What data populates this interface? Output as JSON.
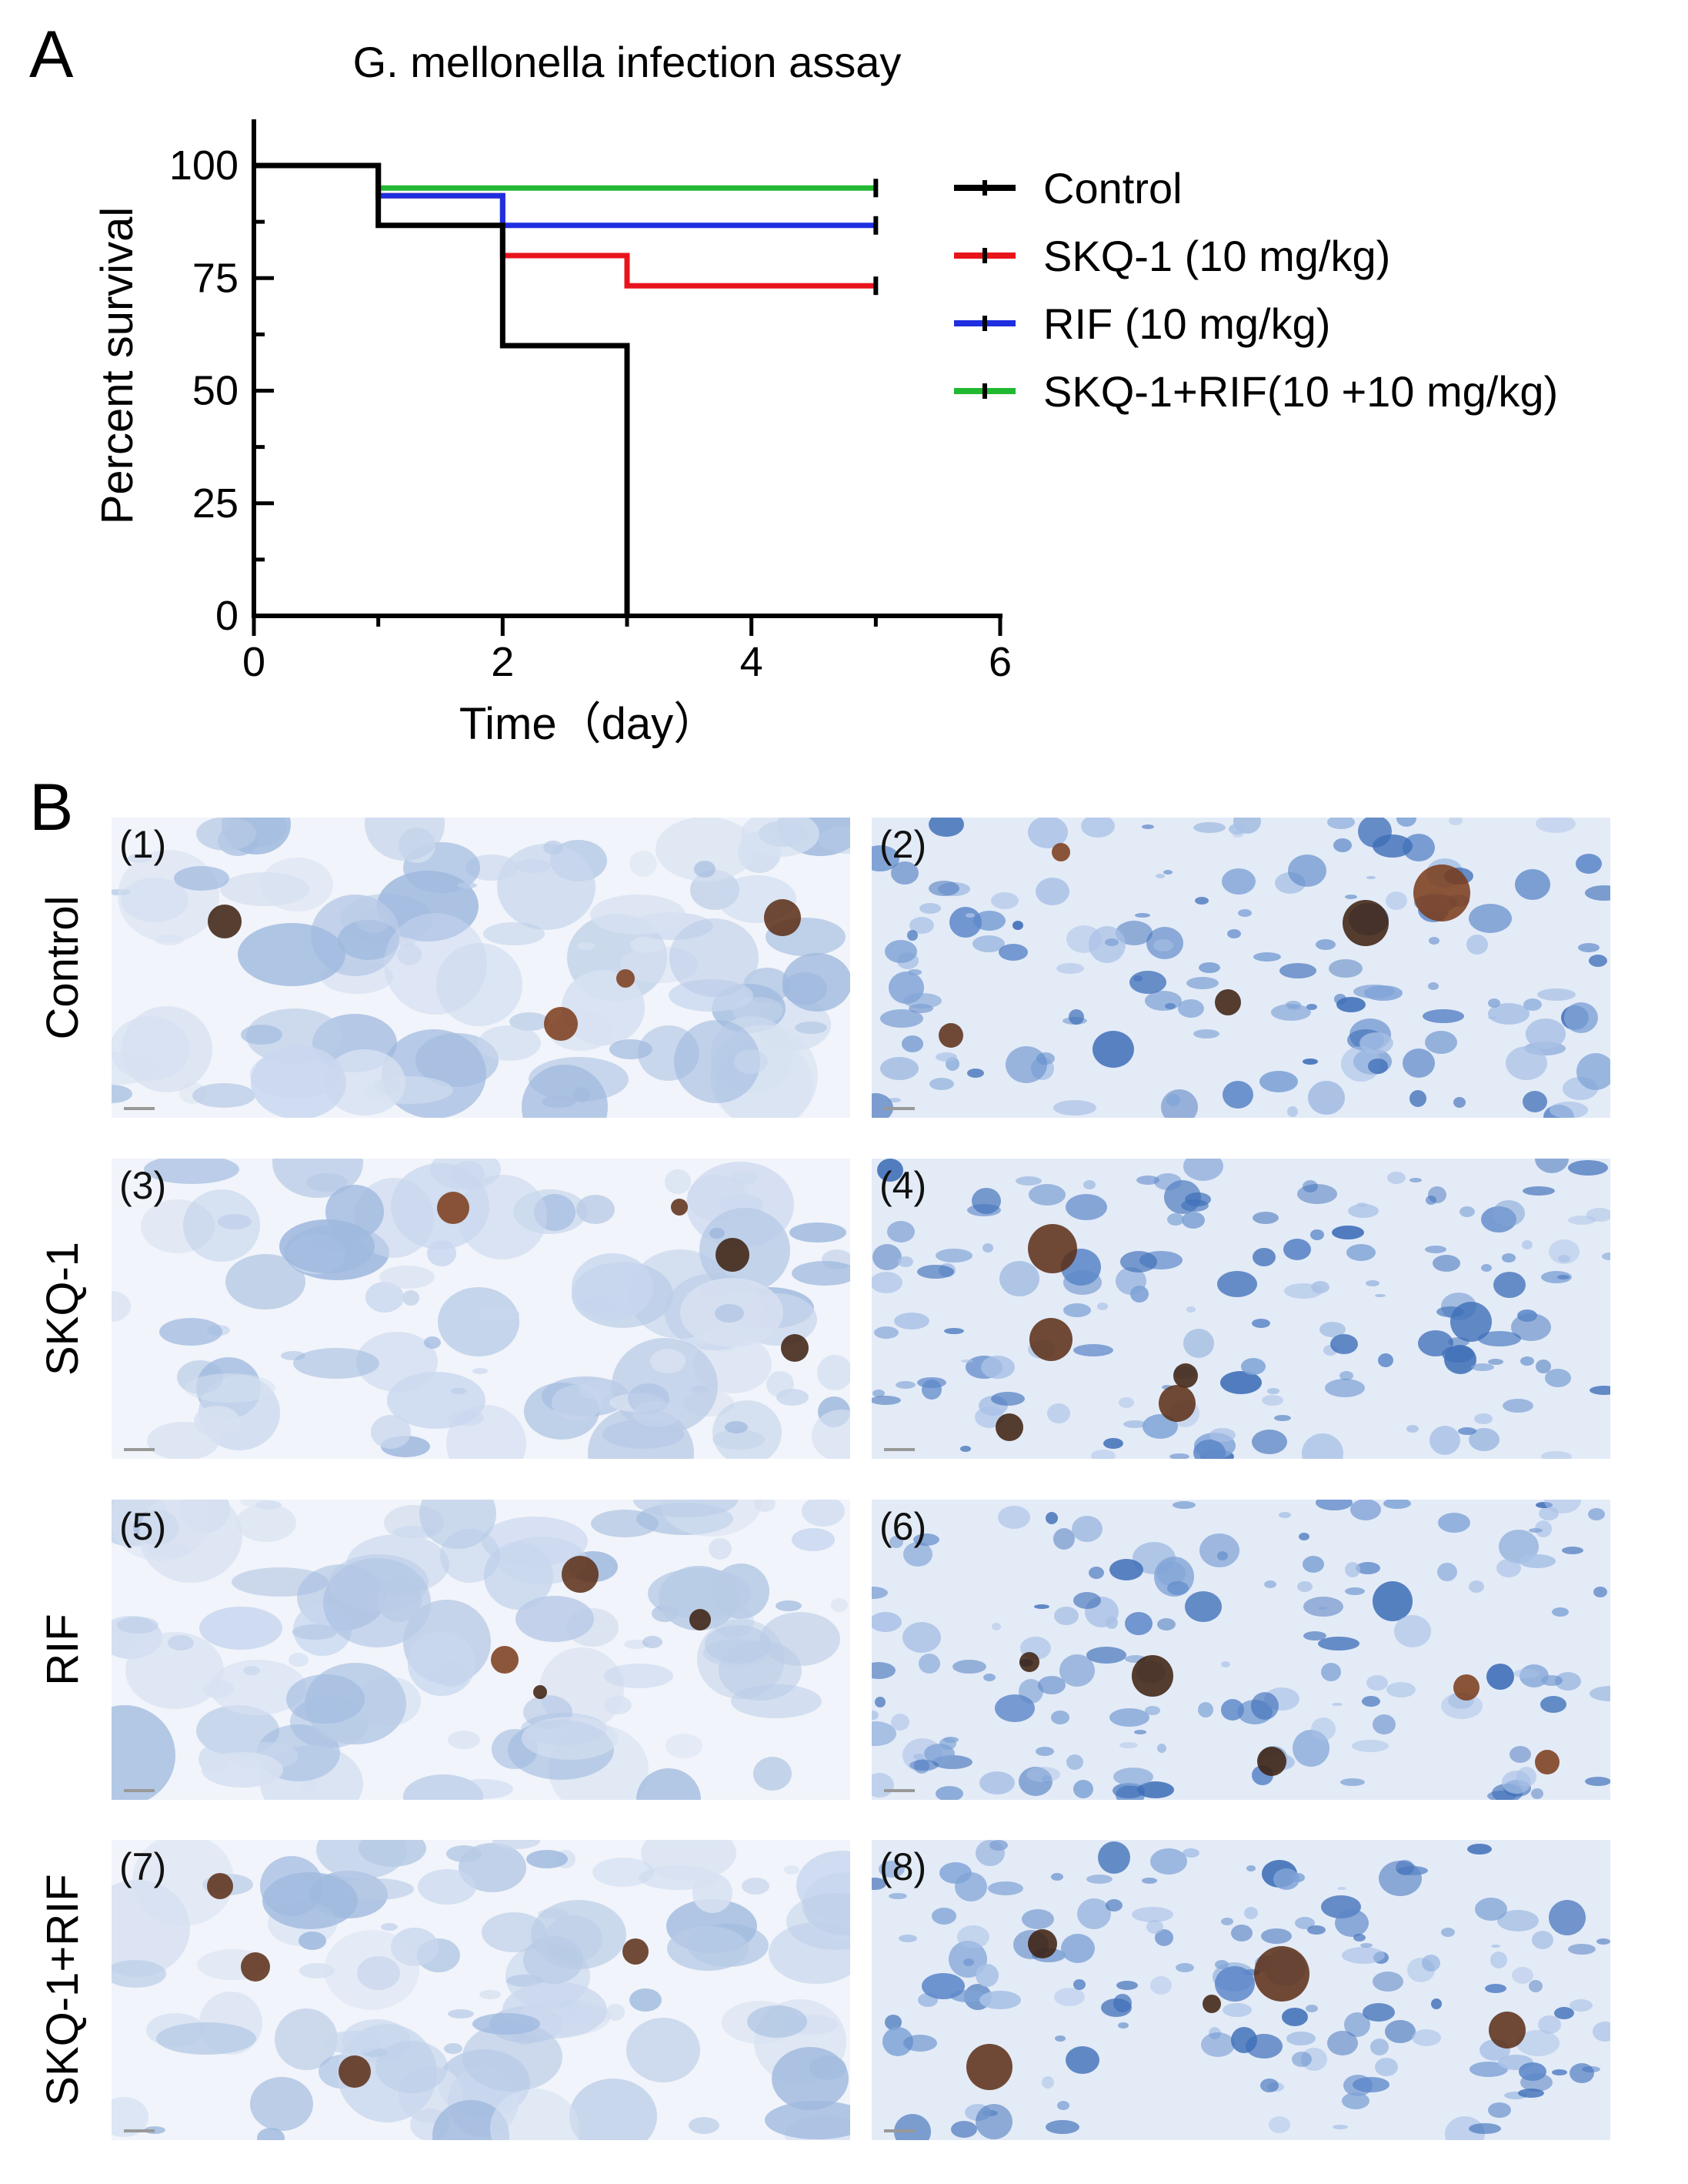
{
  "panel_a": {
    "letter": "A"
  },
  "panel_b": {
    "letter": "B",
    "rows": [
      {
        "label": "Control",
        "images": [
          {
            "label": "(1)",
            "magnification": "low"
          },
          {
            "label": "(2)",
            "magnification": "high"
          }
        ]
      },
      {
        "label": "SKQ-1",
        "images": [
          {
            "label": "(3)",
            "magnification": "low"
          },
          {
            "label": "(4)",
            "magnification": "high"
          }
        ]
      },
      {
        "label": "RIF",
        "images": [
          {
            "label": "(5)",
            "magnification": "low"
          },
          {
            "label": "(6)",
            "magnification": "high"
          }
        ]
      },
      {
        "label": "SKQ-1+RIF",
        "images": [
          {
            "label": "(7)",
            "magnification": "low"
          },
          {
            "label": "(8)",
            "magnification": "high"
          }
        ]
      }
    ]
  },
  "chart_data": {
    "type": "line",
    "subtype": "kaplan-meier survival (step)",
    "title": "G. mellonella infection assay",
    "xlabel": "Time（day）",
    "ylabel": "Percent survival",
    "xlim": [
      0,
      6
    ],
    "ylim": [
      0,
      100
    ],
    "xticks": [
      0,
      2,
      4,
      6
    ],
    "yticks": [
      0,
      25,
      50,
      75,
      100
    ],
    "grid": false,
    "legend_position": "right",
    "series": [
      {
        "name": "Control",
        "color": "#000000",
        "x": [
          0,
          1,
          2,
          3
        ],
        "y": [
          100,
          86.7,
          60,
          0
        ],
        "end_x": 3
      },
      {
        "name": "SKQ-1 (10 mg/kg)",
        "color": "#e8141c",
        "x": [
          0,
          1,
          2,
          3
        ],
        "y": [
          100,
          93.3,
          80,
          73.3
        ],
        "end_x": 5
      },
      {
        "name": "RIF (10 mg/kg)",
        "color": "#1f2fe0",
        "x": [
          0,
          1,
          2
        ],
        "y": [
          100,
          93.3,
          86.7
        ],
        "end_x": 5
      },
      {
        "name": "SKQ-1+RIF(10 +10 mg/kg)",
        "color": "#22b832",
        "x": [
          0,
          1
        ],
        "y": [
          100,
          95
        ],
        "end_x": 5
      }
    ]
  }
}
